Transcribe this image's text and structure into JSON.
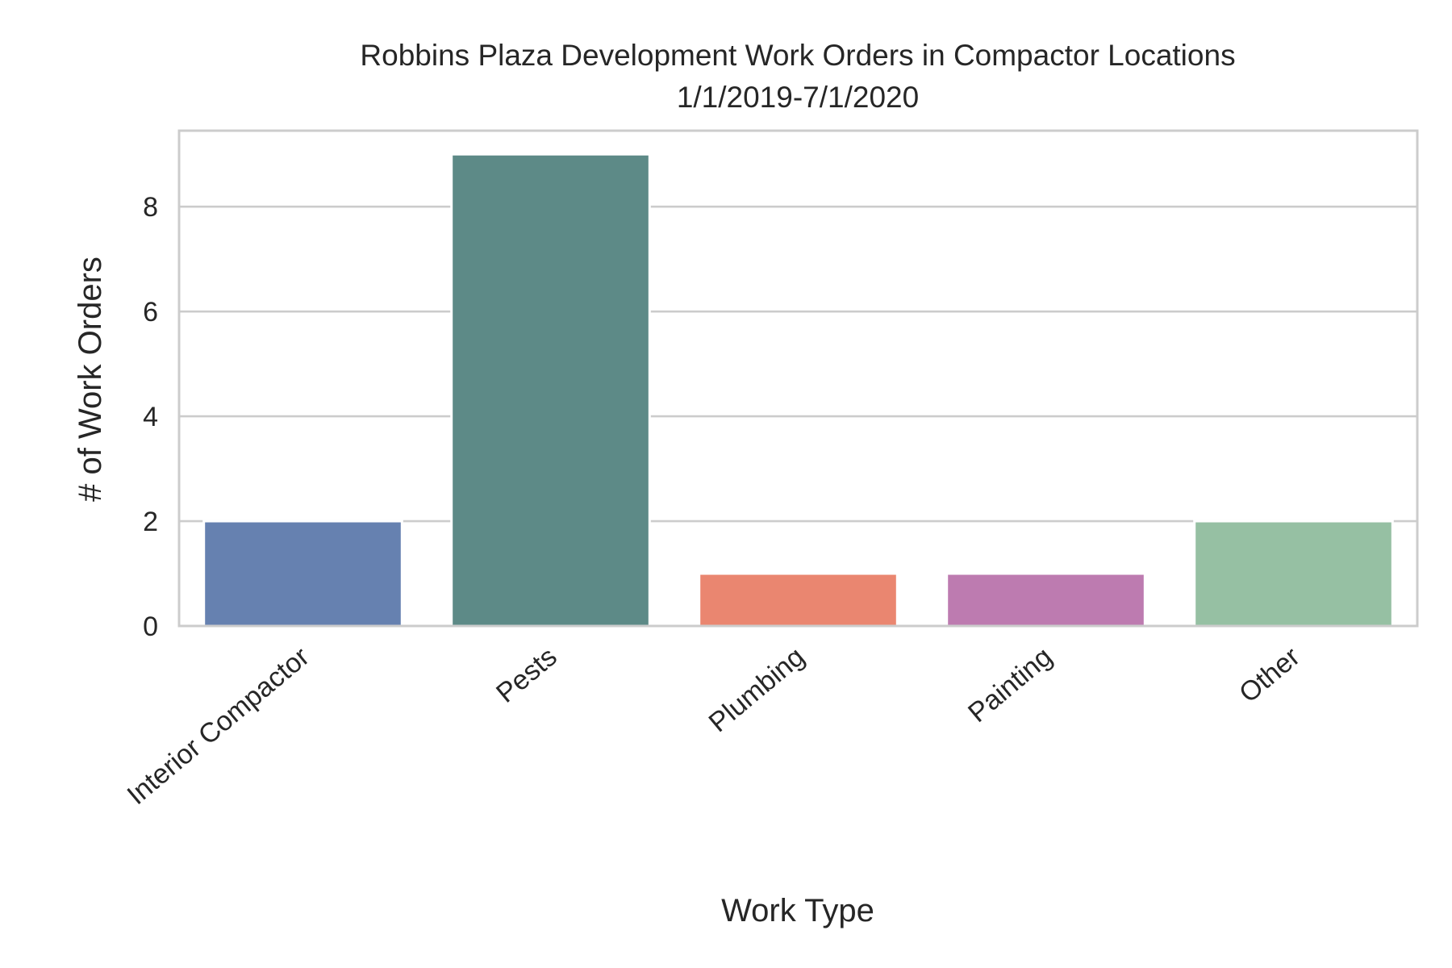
{
  "chart_data": {
    "type": "bar",
    "title": "Robbins Plaza Development Work Orders in Compactor Locations",
    "subtitle": "1/1/2019-7/1/2020",
    "xlabel": "Work Type",
    "ylabel": "# of Work Orders",
    "categories": [
      "Interior Compactor",
      "Pests",
      "Plumbing",
      "Painting",
      "Other"
    ],
    "values": [
      2,
      9,
      1,
      1,
      2
    ],
    "colors": [
      "#6681b0",
      "#5d8a87",
      "#ea8670",
      "#bd7bb0",
      "#96c0a3"
    ],
    "ylim": [
      0,
      9.45
    ],
    "yticks": [
      0,
      2,
      4,
      6,
      8
    ],
    "grid": true,
    "legend": "none"
  }
}
